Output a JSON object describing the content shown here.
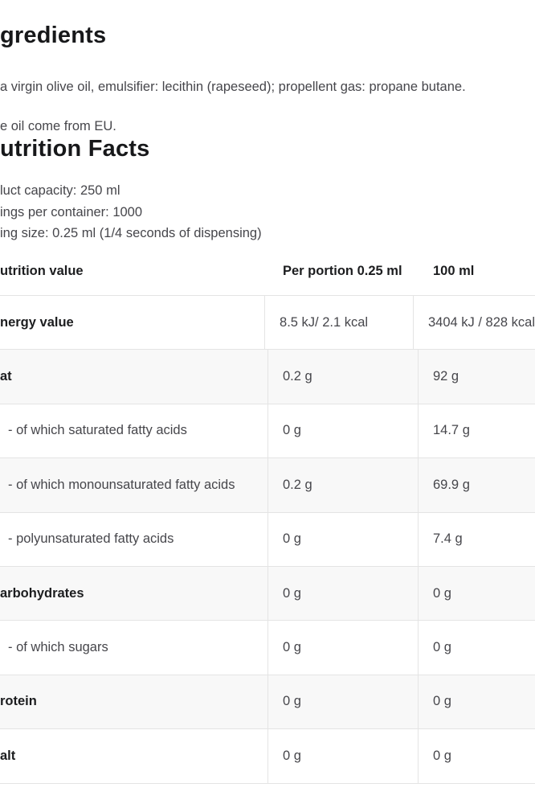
{
  "colors": {
    "background": "#ffffff",
    "heading_text": "#17181a",
    "body_text": "#46464b",
    "table_border": "#e4e4e4",
    "row_stripe": "#f8f8f8"
  },
  "ingredients": {
    "heading": "gredients",
    "paragraph": "a virgin olive oil, emulsifier: lecithin (rapeseed); propellent gas: propane butane.",
    "origin": "e oil come from EU."
  },
  "nutrition": {
    "heading": "utrition Facts",
    "info_lines": {
      "capacity": "luct capacity: 250 ml",
      "servings": "ings per container: 1000",
      "serving_size": "ing size: 0.25 ml (1/4 seconds of dispensing)"
    },
    "table": {
      "columns": {
        "label": "utrition value",
        "per_portion": "Per portion 0.25 ml",
        "per_100": "100 ml"
      },
      "rows": [
        {
          "label": "nergy value",
          "per_portion": "8.5 kJ/ 2.1 kcal",
          "per_100": "3404 kJ / 828 kcal"
        },
        {
          "label": "at",
          "per_portion": "0.2 g",
          "per_100": "92 g"
        },
        {
          "label": "- of which saturated fatty acids",
          "per_portion": "0 g",
          "per_100": "14.7 g"
        },
        {
          "label": "- of which monounsaturated fatty acids",
          "per_portion": "0.2 g",
          "per_100": "69.9 g"
        },
        {
          "label": "- polyunsaturated fatty acids",
          "per_portion": "0 g",
          "per_100": "7.4 g"
        },
        {
          "label": "arbohydrates",
          "per_portion": "0 g",
          "per_100": "0 g"
        },
        {
          "label": "- of which sugars",
          "per_portion": "0 g",
          "per_100": "0 g"
        },
        {
          "label": "rotein",
          "per_portion": "0 g",
          "per_100": "0 g"
        },
        {
          "label": "alt",
          "per_portion": "0 g",
          "per_100": "0 g"
        }
      ]
    }
  }
}
